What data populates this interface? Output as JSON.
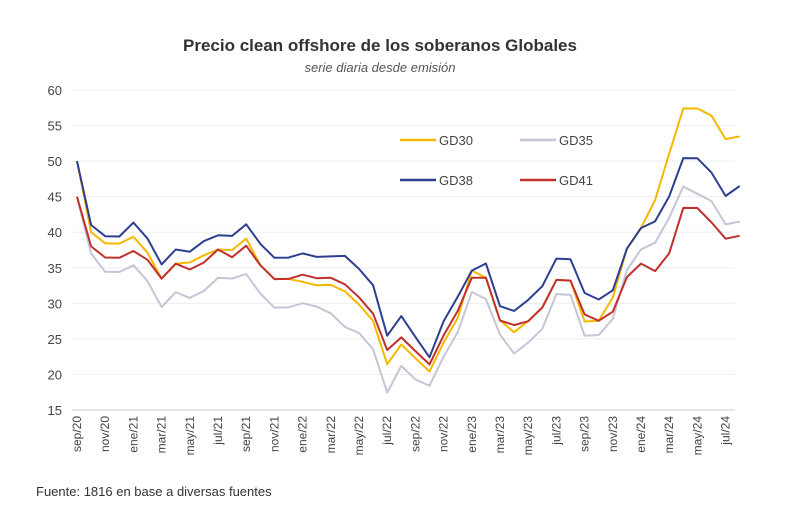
{
  "chart_data": {
    "type": "line",
    "title": "Precio clean offshore de los soberanos Globales",
    "subtitle": "serie diaria desde emisión",
    "source": "Fuente: 1816 en base a diversas fuentes",
    "ylim": [
      15,
      60
    ],
    "yticks": [
      15,
      20,
      25,
      30,
      35,
      40,
      45,
      50,
      55,
      60
    ],
    "xtick_labels": [
      "sep/20",
      "nov/20",
      "ene/21",
      "mar/21",
      "may/21",
      "jul/21",
      "sep/21",
      "nov/21",
      "ene/22",
      "mar/22",
      "may/22",
      "jul/22",
      "sep/22",
      "nov/22",
      "ene/23",
      "mar/23",
      "may/23",
      "jul/23",
      "sep/23",
      "nov/23",
      "ene/24",
      "mar/24",
      "may/24",
      "jul/24"
    ],
    "grid": "horizontal",
    "legend_placement": "top-right inside",
    "x": [
      "2020-09",
      "2020-10",
      "2020-11",
      "2020-12",
      "2021-01",
      "2021-02",
      "2021-03",
      "2021-04",
      "2021-05",
      "2021-06",
      "2021-07",
      "2021-08",
      "2021-09",
      "2021-10",
      "2021-11",
      "2021-12",
      "2022-01",
      "2022-02",
      "2022-03",
      "2022-04",
      "2022-05",
      "2022-06",
      "2022-07",
      "2022-08",
      "2022-09",
      "2022-10",
      "2022-11",
      "2022-12",
      "2023-01",
      "2023-02",
      "2023-03",
      "2023-04",
      "2023-05",
      "2023-06",
      "2023-07",
      "2023-08",
      "2023-09",
      "2023-10",
      "2023-11",
      "2023-12",
      "2024-01",
      "2024-02",
      "2024-03",
      "2024-04",
      "2024-05",
      "2024-06",
      "2024-07",
      "2024-08"
    ],
    "series": [
      {
        "name": "GD30",
        "color": "#f5b800",
        "values": [
          50,
          40,
          38,
          39,
          39,
          37,
          34,
          35,
          36,
          37,
          37,
          38,
          39,
          35,
          34,
          33,
          33,
          33,
          32,
          32,
          30,
          27,
          22,
          24,
          22,
          21,
          24,
          28,
          35,
          33,
          28,
          26,
          27,
          30,
          33,
          33,
          28,
          27,
          31,
          38,
          40,
          45,
          51,
          57,
          58,
          56,
          53,
          54
        ]
      },
      {
        "name": "GD35",
        "color": "#c4c6d6",
        "values": [
          45,
          37,
          34,
          35,
          35,
          33,
          30,
          31,
          31,
          32,
          33,
          34,
          34,
          31,
          30,
          29,
          30,
          30,
          28,
          27,
          26,
          23,
          18,
          21,
          19,
          19,
          22,
          26,
          32,
          30,
          26,
          23,
          24,
          27,
          31,
          31,
          26,
          25,
          28,
          35,
          37,
          39,
          42,
          46,
          46,
          44,
          41,
          42
        ]
      },
      {
        "name": "GD38",
        "color": "#2e3f8f",
        "values": [
          50,
          41,
          39,
          40,
          41,
          39,
          36,
          37,
          37.5,
          39,
          39,
          40,
          41,
          38,
          37,
          36,
          37,
          37,
          36,
          37,
          35,
          32,
          26,
          28,
          25,
          23,
          27,
          31,
          35,
          35,
          30,
          29,
          30,
          33,
          36,
          36,
          32,
          30,
          32,
          38,
          40,
          42,
          45,
          50,
          51,
          48,
          45,
          47
        ]
      },
      {
        "name": "GD41",
        "color": "#c0302e",
        "values": [
          45,
          38,
          36,
          37,
          37,
          36,
          34,
          35,
          35,
          36,
          37,
          37,
          38,
          35,
          34,
          33,
          34,
          34,
          33,
          33,
          31,
          28,
          24,
          25,
          23,
          22,
          25,
          29,
          34,
          33,
          28,
          27,
          27,
          30,
          33,
          33,
          29,
          27,
          29,
          34,
          35,
          35,
          37,
          43,
          44,
          41,
          39,
          40
        ]
      }
    ]
  }
}
